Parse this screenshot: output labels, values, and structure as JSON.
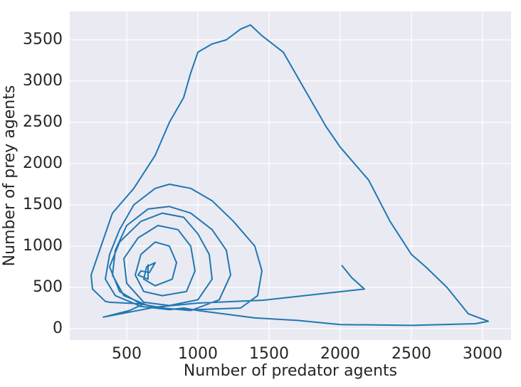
{
  "chart_data": {
    "type": "line",
    "x_label": "Number of predator agents",
    "y_label": "Number of prey agents",
    "xlim": [
      100,
      3200
    ],
    "ylim": [
      -138,
      3845
    ],
    "xticks": [
      500,
      1000,
      1500,
      2000,
      2500,
      3000
    ],
    "yticks": [
      0,
      500,
      1000,
      1500,
      2000,
      2500,
      3000,
      3500
    ],
    "grid": true,
    "background": "#eaeaf2",
    "series": [
      {
        "color": "#1f77b4",
        "x": [
          2010,
          2080,
          2170,
          1460,
          1000,
          700,
          335,
          520,
          620,
          380,
          350,
          260,
          250,
          300,
          350,
          400,
          550,
          700,
          800,
          900,
          950,
          1000,
          1100,
          1200,
          1300,
          1370,
          1450,
          1600,
          1750,
          1900,
          2000,
          2200,
          2350,
          2500,
          2600,
          2750,
          2900,
          3040,
          2950,
          2500,
          2000,
          1700,
          1400,
          1000,
          900,
          800,
          600,
          420,
          350,
          380,
          450,
          550,
          700,
          800,
          950,
          1100,
          1250,
          1400,
          1450,
          1420,
          1300,
          1000,
          800,
          650,
          480,
          400,
          420,
          500,
          650,
          800,
          950,
          1100,
          1200,
          1230,
          1150,
          950,
          750,
          600,
          450,
          380,
          450,
          600,
          750,
          900,
          1000,
          1080,
          1100,
          1000,
          800,
          620,
          500,
          480,
          580,
          720,
          860,
          950,
          980,
          920,
          750,
          620,
          560,
          600,
          700,
          800,
          850,
          820,
          700,
          620,
          640,
          700,
          660,
          600,
          580,
          650,
          650
        ],
        "values": [
          770,
          620,
          480,
          345,
          310,
          260,
          140,
          220,
          300,
          320,
          330,
          480,
          650,
          900,
          1150,
          1400,
          1700,
          2100,
          2500,
          2800,
          3100,
          3350,
          3450,
          3500,
          3630,
          3680,
          3550,
          3350,
          2900,
          2450,
          2200,
          1800,
          1300,
          900,
          750,
          500,
          180,
          90,
          60,
          40,
          50,
          100,
          130,
          220,
          250,
          230,
          270,
          400,
          600,
          900,
          1200,
          1500,
          1700,
          1750,
          1700,
          1550,
          1300,
          1000,
          700,
          400,
          250,
          230,
          240,
          280,
          400,
          650,
          950,
          1250,
          1450,
          1480,
          1400,
          1200,
          950,
          650,
          350,
          220,
          250,
          300,
          450,
          750,
          1050,
          1300,
          1400,
          1350,
          1150,
          900,
          600,
          350,
          280,
          320,
          550,
          850,
          1100,
          1250,
          1200,
          1000,
          700,
          450,
          400,
          450,
          650,
          900,
          1050,
          1000,
          800,
          600,
          520,
          600,
          750,
          800,
          680,
          700,
          650,
          600,
          780
        ]
      }
    ]
  }
}
